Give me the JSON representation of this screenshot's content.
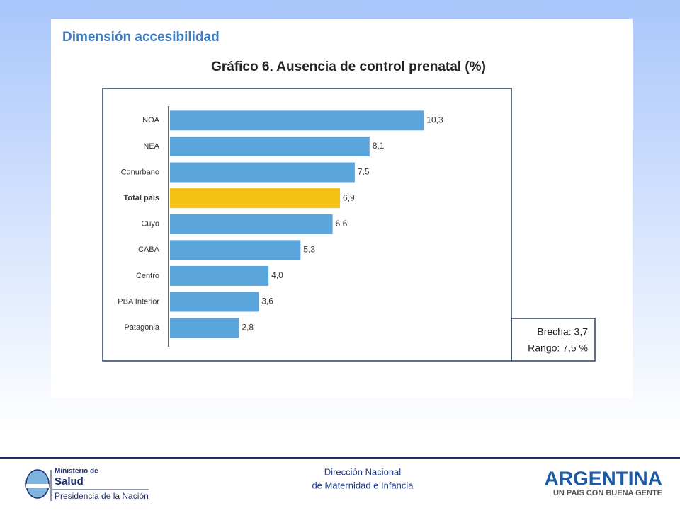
{
  "heading": "Dimensión accesibilidad",
  "chart_data": {
    "type": "hbar",
    "title": "Gráfico 6. Ausencia de control prenatal (%)",
    "categories": [
      "NOA",
      "NEA",
      "Conurbano",
      "Total país",
      "Cuyo",
      "CABA",
      "Centro",
      "PBA Interior",
      "Patagonia"
    ],
    "values": [
      10.3,
      8.1,
      7.5,
      6.9,
      6.6,
      5.3,
      4.0,
      3.6,
      2.8
    ],
    "value_labels": [
      "10,3",
      "8,1",
      "7,5",
      "6,9",
      "6.6",
      "5,3",
      "4,0",
      "3,6",
      "2,8"
    ],
    "colors": [
      "#5aa5dc",
      "#5aa5dc",
      "#5aa5dc",
      "#f6c216",
      "#5aa5dc",
      "#5aa5dc",
      "#5aa5dc",
      "#5aa5dc",
      "#5aa5dc"
    ],
    "xlim": [
      0,
      14
    ]
  },
  "summary": {
    "brecha": "Brecha: 3,7",
    "rango": "Rango: 7,5 %"
  },
  "footer": {
    "line1": "Dirección Nacional",
    "line2": "de Maternidad e Infancia",
    "ministry": {
      "line1": "Ministerio de",
      "line2": "Salud",
      "line3": "Presidencia de la Nación"
    },
    "brand": {
      "name": "ARGENTINA",
      "slogan": "UN PAIS CON BUENA GENTE"
    }
  }
}
